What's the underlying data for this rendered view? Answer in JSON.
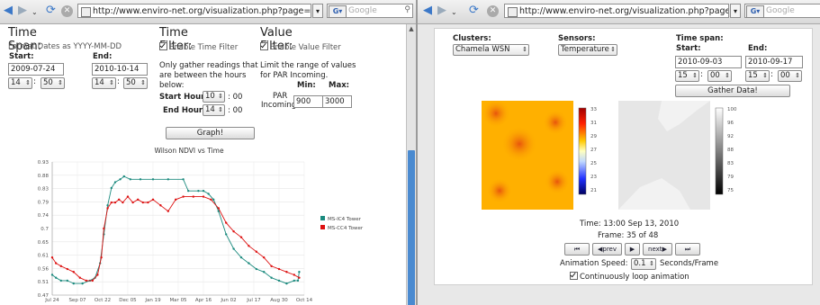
{
  "left_window": {
    "url": "http://www.enviro-net.org/visualization.php?page=NDVI_gr",
    "search_placeholder": "Google",
    "time_span": {
      "heading": "Time Span:",
      "format_note": "Format Dates as YYYY-MM-DD",
      "start_label": "Start:",
      "end_label": "End:",
      "start_date": "2009-07-24",
      "end_date": "2010-10-14",
      "start_hour": "14",
      "start_min": "50",
      "end_hour": "14",
      "end_min": "50",
      "colon": ":"
    },
    "time_filter": {
      "heading": "Time Filter:",
      "enable_label": "Enable Time Filter",
      "desc_1": "Only gather readings that",
      "desc_2": "are between the hours",
      "desc_3": "below:",
      "start_hour_label": "Start Hour:",
      "start_hour": "10",
      "end_hour_label": "End Hour:",
      "end_hour": "14",
      "suffix": ": 00"
    },
    "value_filter": {
      "heading": "Value Filter:",
      "enable_label": "Enable Value Filter",
      "desc_1": "Limit the range of values",
      "desc_2": "for PAR Incoming.",
      "min_label": "Min:",
      "max_label": "Max:",
      "par_label_1": "PAR",
      "par_label_2": "Incoming",
      "min_value": "900",
      "max_value": "3000"
    },
    "graph_button": "Graph!"
  },
  "chart_data": {
    "type": "line",
    "title": "Wilson NDVI vs Time",
    "x_tick_labels": [
      "Jul 24",
      "Sep 07",
      "Oct 22",
      "Dec 05",
      "Jan 19",
      "Mar 05",
      "Apr 16",
      "Jun 02",
      "Jul 17",
      "Aug 30",
      "Oct 14"
    ],
    "y_tick_labels": [
      "0.93",
      "0.88",
      "0.83",
      "0.79",
      "0.74",
      "0.7",
      "0.65",
      "0.61",
      "0.56",
      "0.51",
      "0.47"
    ],
    "ylim": [
      0.47,
      0.93
    ],
    "series": [
      {
        "name": "MS-IC4 Tower",
        "color": "#1b8a7e",
        "points": [
          [
            0,
            0.54
          ],
          [
            0.15,
            0.53
          ],
          [
            0.35,
            0.52
          ],
          [
            0.6,
            0.52
          ],
          [
            0.85,
            0.51
          ],
          [
            1.2,
            0.51
          ],
          [
            1.5,
            0.52
          ],
          [
            1.7,
            0.53
          ],
          [
            1.9,
            0.58
          ],
          [
            2.05,
            0.68
          ],
          [
            2.2,
            0.78
          ],
          [
            2.35,
            0.84
          ],
          [
            2.5,
            0.86
          ],
          [
            2.7,
            0.87
          ],
          [
            2.85,
            0.88
          ],
          [
            3.1,
            0.87
          ],
          [
            3.5,
            0.87
          ],
          [
            4.0,
            0.87
          ],
          [
            4.6,
            0.87
          ],
          [
            5.2,
            0.87
          ],
          [
            5.4,
            0.83
          ],
          [
            5.8,
            0.83
          ],
          [
            6.0,
            0.83
          ],
          [
            6.2,
            0.82
          ],
          [
            6.4,
            0.8
          ],
          [
            6.6,
            0.76
          ],
          [
            6.9,
            0.68
          ],
          [
            7.2,
            0.63
          ],
          [
            7.5,
            0.6
          ],
          [
            7.8,
            0.58
          ],
          [
            8.1,
            0.56
          ],
          [
            8.4,
            0.55
          ],
          [
            8.7,
            0.53
          ],
          [
            9.0,
            0.52
          ],
          [
            9.3,
            0.51
          ],
          [
            9.6,
            0.52
          ],
          [
            9.75,
            0.52
          ],
          [
            9.8,
            0.55
          ]
        ]
      },
      {
        "name": "MS-CC4 Tower",
        "color": "#dd1111",
        "points": [
          [
            0,
            0.6
          ],
          [
            0.15,
            0.58
          ],
          [
            0.35,
            0.57
          ],
          [
            0.6,
            0.56
          ],
          [
            0.85,
            0.55
          ],
          [
            1.1,
            0.53
          ],
          [
            1.35,
            0.52
          ],
          [
            1.6,
            0.52
          ],
          [
            1.8,
            0.54
          ],
          [
            1.95,
            0.6
          ],
          [
            2.05,
            0.7
          ],
          [
            2.2,
            0.77
          ],
          [
            2.35,
            0.79
          ],
          [
            2.5,
            0.79
          ],
          [
            2.65,
            0.8
          ],
          [
            2.8,
            0.79
          ],
          [
            3.0,
            0.81
          ],
          [
            3.2,
            0.79
          ],
          [
            3.4,
            0.8
          ],
          [
            3.6,
            0.79
          ],
          [
            3.8,
            0.79
          ],
          [
            4.0,
            0.8
          ],
          [
            4.3,
            0.78
          ],
          [
            4.6,
            0.76
          ],
          [
            4.9,
            0.8
          ],
          [
            5.2,
            0.81
          ],
          [
            5.6,
            0.81
          ],
          [
            6.0,
            0.81
          ],
          [
            6.3,
            0.8
          ],
          [
            6.6,
            0.77
          ],
          [
            6.9,
            0.72
          ],
          [
            7.2,
            0.69
          ],
          [
            7.5,
            0.67
          ],
          [
            7.8,
            0.64
          ],
          [
            8.1,
            0.62
          ],
          [
            8.4,
            0.6
          ],
          [
            8.7,
            0.57
          ],
          [
            9.0,
            0.56
          ],
          [
            9.3,
            0.55
          ],
          [
            9.6,
            0.54
          ],
          [
            9.8,
            0.53
          ]
        ]
      }
    ],
    "legend_position": "right",
    "grid": true
  },
  "right_window": {
    "url": "http://www.enviro-net.org/visualization.php?page=IDW_m",
    "search_placeholder": "Google",
    "clusters_label": "Clusters:",
    "cluster_value": "Chamela WSN",
    "sensors_label": "Sensors:",
    "sensor_value": "Temperature",
    "time_span_label": "Time span:",
    "start_label": "Start:",
    "end_label": "End:",
    "start_date": "2010-09-03",
    "end_date": "2010-09-17",
    "start_hour": "15",
    "start_min": "00",
    "end_hour": "15",
    "end_min": "00",
    "colon": ":",
    "gather_button": "Gather Data!",
    "color_scale_labels": [
      "33",
      "31",
      "29",
      "27",
      "25",
      "23",
      "21"
    ],
    "gray_scale_labels": [
      "100",
      "96",
      "92",
      "88",
      "83",
      "79",
      "75"
    ],
    "time_text": "Time: 13:00 Sep 13, 2010",
    "frame_text": "Frame: 35 of 48",
    "prev_label": "prev",
    "next_label": "next",
    "animation_speed_label": "Animation Speed:",
    "animation_speed_value": "0.1",
    "seconds_label": "Seconds/Frame",
    "loop_label": "Continuously loop animation"
  }
}
